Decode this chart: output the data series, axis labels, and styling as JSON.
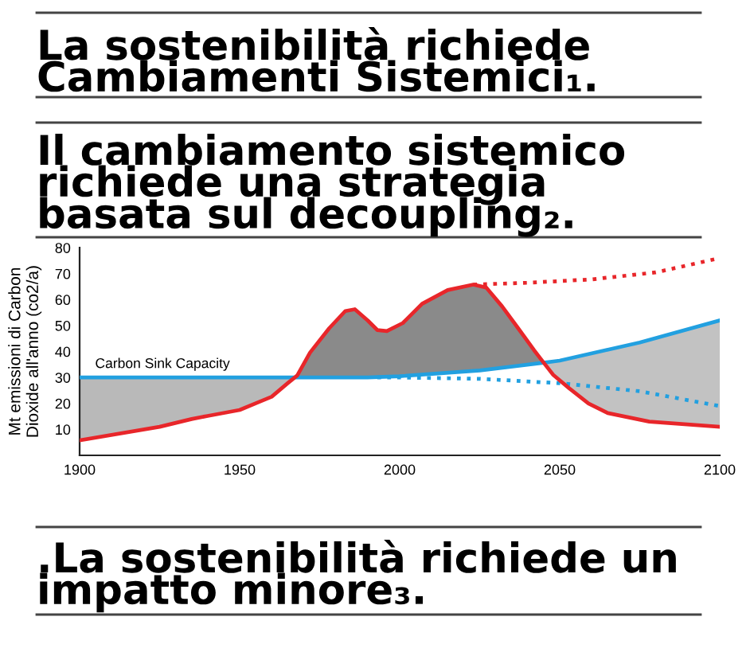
{
  "chart_data": {
    "type": "line",
    "title": "La sostenibilità richiede\nCambiamenti Sistemici₁.",
    "subtitle": "Il cambiamento sistemico\nrichiede una strategia\nbasata sul decoupling₂.",
    "annotations": [
      ".La sostenibilità richiede un\nimpatto minore₃."
    ],
    "ylabel": "Mt emissioni di Carbon\nDioxide all'anno (co2/a)",
    "xlim": [
      1900,
      2100
    ],
    "xticks": [
      1900,
      1950,
      2000,
      2050,
      2100
    ],
    "ylim": [
      0,
      80
    ],
    "yticks": [
      10,
      20,
      30,
      40,
      50,
      60,
      70,
      80
    ],
    "series": [
      {
        "color": "#b9b9b9",
        "x": [
          1900,
          1925,
          1935,
          1940,
          1950,
          1960,
          1965,
          1967
        ],
        "values": [
          null,
          null,
          null,
          null,
          null,
          null,
          null,
          null
        ],
        "lower": [
          5.8,
          11,
          14,
          15.2,
          17.5,
          22.6,
          27.8,
          30
        ],
        "upper": [
          30,
          30,
          30,
          30,
          30,
          30,
          30,
          30
        ]
      },
      {
        "color": "#8a8a8a",
        "x": [
          1967,
          1968,
          1972,
          1978,
          1983,
          1986,
          1990,
          1993,
          1996,
          2001,
          2007,
          2015,
          2023,
          2027,
          2032,
          2037,
          2042,
          2045
        ],
        "values": [
          null,
          null,
          null,
          null,
          null,
          null,
          null,
          null,
          null,
          null,
          null,
          null,
          null,
          null,
          null,
          null,
          null,
          null
        ],
        "lower": [
          30,
          30,
          30,
          30,
          30,
          30,
          30,
          30.1,
          30.3,
          30.5,
          31,
          31.8,
          32.5,
          33.1,
          33.8,
          34.5,
          35.2,
          35.7
        ],
        "upper": [
          30,
          30.8,
          39.6,
          49,
          55.6,
          56.3,
          52,
          48.3,
          47.9,
          51,
          58.4,
          63.7,
          65.8,
          64.7,
          57.4,
          49,
          40.5,
          35.7
        ]
      },
      {
        "color": "#c2c2c2",
        "x": [
          2045,
          2048,
          2053,
          2059,
          2065,
          2078,
          2100
        ],
        "values": [
          null,
          null,
          null,
          null,
          null,
          null,
          null
        ],
        "lower": [
          35.7,
          31,
          25.8,
          20,
          16.3,
          13,
          11
        ],
        "upper": [
          35.7,
          36.2,
          37.2,
          39,
          40.6,
          44.5,
          52
        ]
      },
      {
        "name": "Carbon Sink Capacity",
        "color": "#22a0e0",
        "line_style": "solid",
        "x": [
          1900,
          1950,
          1990,
          2000,
          2025,
          2045,
          2050,
          2075,
          2100
        ],
        "values": [
          30,
          30,
          30,
          30.5,
          32.7,
          35.7,
          36.5,
          43.5,
          52
        ]
      },
      {
        "color": "#22a0e0",
        "line_style": "dotted",
        "x": [
          1993,
          2000,
          2025,
          2050,
          2075,
          2100
        ],
        "values": [
          30,
          30,
          29.5,
          27.8,
          24.7,
          19
        ]
      },
      {
        "color": "#e8262a",
        "line_style": "solid",
        "x": [
          1900,
          1925,
          1935,
          1940,
          1950,
          1960,
          1965,
          1968,
          1972,
          1978,
          1983,
          1986,
          1990,
          1993,
          1996,
          2001,
          2007,
          2015,
          2023,
          2027,
          2032,
          2037,
          2042,
          2045,
          2048,
          2053,
          2059,
          2065,
          2078,
          2100
        ],
        "values": [
          5.8,
          11,
          14,
          15.2,
          17.5,
          22.6,
          27.8,
          30.8,
          39.6,
          49,
          55.6,
          56.3,
          52,
          48.3,
          47.9,
          51,
          58.4,
          63.7,
          65.8,
          64.7,
          57.4,
          49,
          40.5,
          35.7,
          31,
          25.8,
          20,
          16.3,
          13,
          11
        ]
      },
      {
        "color": "#e8262a",
        "line_style": "dotted",
        "x": [
          2023,
          2040,
          2060,
          2080,
          2100
        ],
        "values": [
          65.8,
          66.5,
          67.8,
          70.5,
          76
        ]
      }
    ]
  }
}
